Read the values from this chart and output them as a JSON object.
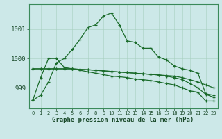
{
  "xlabel": "Graphe pression niveau de la mer (hPa)",
  "background_color": "#cce8e8",
  "line_color": "#1a6b2a",
  "yticks": [
    999,
    1000,
    1001
  ],
  "ylim": [
    998.3,
    1001.85
  ],
  "xlim": [
    -0.5,
    23.5
  ],
  "series": [
    [
      998.58,
      998.75,
      999.2,
      999.85,
      1000.0,
      1000.3,
      1000.65,
      1001.05,
      1001.15,
      1001.45,
      1001.55,
      1001.15,
      1000.6,
      1000.55,
      1000.35,
      1000.35,
      1000.05,
      999.95,
      999.75,
      999.65,
      999.6,
      999.5,
      998.8,
      998.75
    ],
    [
      998.58,
      999.35,
      1000.0,
      1000.0,
      999.7,
      999.65,
      999.6,
      999.55,
      999.5,
      999.45,
      999.4,
      999.38,
      999.35,
      999.3,
      999.28,
      999.25,
      999.2,
      999.15,
      999.1,
      999.0,
      998.9,
      998.85,
      998.55,
      998.55
    ],
    [
      999.65,
      999.65,
      999.65,
      999.65,
      999.65,
      999.65,
      999.63,
      999.62,
      999.6,
      999.58,
      999.56,
      999.54,
      999.52,
      999.5,
      999.48,
      999.46,
      999.44,
      999.42,
      999.4,
      999.35,
      999.28,
      999.2,
      999.1,
      999.0
    ],
    [
      999.65,
      999.65,
      999.65,
      999.65,
      999.65,
      999.65,
      999.63,
      999.62,
      999.6,
      999.58,
      999.56,
      999.54,
      999.52,
      999.5,
      999.48,
      999.46,
      999.44,
      999.4,
      999.35,
      999.28,
      999.15,
      999.0,
      998.78,
      998.68
    ]
  ]
}
